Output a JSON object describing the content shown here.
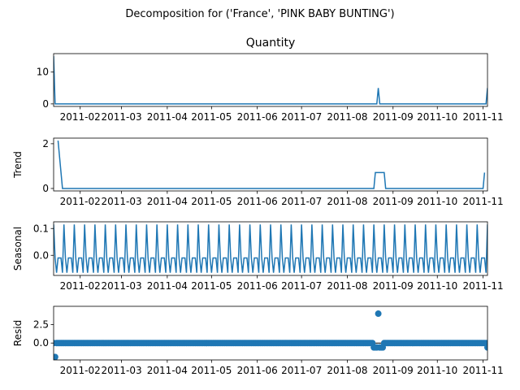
{
  "figure": {
    "suptitle": "Decomposition for ('France', 'PINK BABY BUNTING')"
  },
  "chart_data": [
    {
      "type": "line",
      "panel": "observed",
      "title": "Quantity",
      "ylabel": "",
      "line_color": "#1f77b4",
      "xlim": [
        "2011-01-14",
        "2011-11-04"
      ],
      "ylim": [
        -0.8,
        15.8
      ],
      "yticks": [
        {
          "v": 0,
          "label": "0"
        },
        {
          "v": 10,
          "label": "10"
        }
      ],
      "xticks": [
        {
          "v": "2011-02-01",
          "label": "2011-02"
        },
        {
          "v": "2011-03-01",
          "label": "2011-03"
        },
        {
          "v": "2011-04-01",
          "label": "2011-04"
        },
        {
          "v": "2011-05-01",
          "label": "2011-05"
        },
        {
          "v": "2011-06-01",
          "label": "2011-06"
        },
        {
          "v": "2011-07-01",
          "label": "2011-07"
        },
        {
          "v": "2011-08-01",
          "label": "2011-08"
        },
        {
          "v": "2011-09-01",
          "label": "2011-09"
        },
        {
          "v": "2011-10-01",
          "label": "2011-10"
        },
        {
          "v": "2011-11-01",
          "label": "2011-11"
        }
      ],
      "series": [
        {
          "points": [
            [
              "2011-01-14",
              15
            ],
            [
              "2011-01-15",
              0
            ],
            [
              "2011-08-21",
              0
            ],
            [
              "2011-08-22",
              5
            ],
            [
              "2011-08-23",
              0
            ],
            [
              "2011-11-03",
              0
            ],
            [
              "2011-11-04",
              5
            ]
          ]
        }
      ]
    },
    {
      "type": "line",
      "panel": "trend",
      "ylabel": "Trend",
      "line_color": "#1f77b4",
      "xlim": [
        "2011-01-14",
        "2011-11-04"
      ],
      "ylim": [
        -0.11,
        2.25
      ],
      "yticks": [
        {
          "v": 0,
          "label": "0"
        },
        {
          "v": 2,
          "label": "2"
        }
      ],
      "xticks": [
        {
          "v": "2011-02-01",
          "label": "2011-02"
        },
        {
          "v": "2011-03-01",
          "label": "2011-03"
        },
        {
          "v": "2011-04-01",
          "label": "2011-04"
        },
        {
          "v": "2011-05-01",
          "label": "2011-05"
        },
        {
          "v": "2011-06-01",
          "label": "2011-06"
        },
        {
          "v": "2011-07-01",
          "label": "2011-07"
        },
        {
          "v": "2011-08-01",
          "label": "2011-08"
        },
        {
          "v": "2011-09-01",
          "label": "2011-09"
        },
        {
          "v": "2011-10-01",
          "label": "2011-10"
        },
        {
          "v": "2011-11-01",
          "label": "2011-11"
        }
      ],
      "series": [
        {
          "points": [
            [
              "2011-01-17",
              2.14
            ],
            [
              "2011-01-20",
              0
            ],
            [
              "2011-08-19",
              0
            ],
            [
              "2011-08-20",
              0.71
            ],
            [
              "2011-08-26",
              0.71
            ],
            [
              "2011-08-27",
              0
            ],
            [
              "2011-11-01",
              0
            ],
            [
              "2011-11-02",
              0.71
            ]
          ]
        }
      ]
    },
    {
      "type": "line",
      "panel": "seasonal",
      "ylabel": "Seasonal",
      "line_color": "#1f77b4",
      "xlim": [
        "2011-01-14",
        "2011-11-04"
      ],
      "ylim": [
        -0.075,
        0.125
      ],
      "yticks": [
        {
          "v": 0,
          "label": "0.0"
        },
        {
          "v": 0.1,
          "label": "0.1"
        }
      ],
      "xticks": [
        {
          "v": "2011-02-01",
          "label": "2011-02"
        },
        {
          "v": "2011-03-01",
          "label": "2011-03"
        },
        {
          "v": "2011-04-01",
          "label": "2011-04"
        },
        {
          "v": "2011-05-01",
          "label": "2011-05"
        },
        {
          "v": "2011-06-01",
          "label": "2011-06"
        },
        {
          "v": "2011-07-01",
          "label": "2011-07"
        },
        {
          "v": "2011-08-01",
          "label": "2011-08"
        },
        {
          "v": "2011-09-01",
          "label": "2011-09"
        },
        {
          "v": "2011-10-01",
          "label": "2011-10"
        },
        {
          "v": "2011-11-01",
          "label": "2011-11"
        }
      ],
      "series": [
        {
          "period_days": 7,
          "start": "2011-01-14",
          "end": "2011-11-04",
          "weekly_pattern": [
            0.115,
            -0.01,
            -0.065,
            -0.01,
            -0.01,
            -0.01,
            -0.065
          ]
        }
      ]
    },
    {
      "type": "scatter",
      "panel": "resid",
      "ylabel": "Resid",
      "marker_color": "#1f77b4",
      "baseline": 0,
      "xlim": [
        "2011-01-14",
        "2011-11-04"
      ],
      "ylim": [
        -2.3,
        5.0
      ],
      "yticks": [
        {
          "v": 0,
          "label": "0.0"
        },
        {
          "v": 2.5,
          "label": "2.5"
        }
      ],
      "xticks": [
        {
          "v": "2011-02-01",
          "label": "2011-02"
        },
        {
          "v": "2011-03-01",
          "label": "2011-03"
        },
        {
          "v": "2011-04-01",
          "label": "2011-04"
        },
        {
          "v": "2011-05-01",
          "label": "2011-05"
        },
        {
          "v": "2011-06-01",
          "label": "2011-06"
        },
        {
          "v": "2011-07-01",
          "label": "2011-07"
        },
        {
          "v": "2011-08-01",
          "label": "2011-08"
        },
        {
          "v": "2011-09-01",
          "label": "2011-09"
        },
        {
          "v": "2011-10-01",
          "label": "2011-10"
        },
        {
          "v": "2011-11-01",
          "label": "2011-11"
        }
      ],
      "series": [
        {
          "start": "2011-01-14",
          "end": "2011-11-04",
          "typical_value": 0,
          "points": [
            [
              "2011-01-15",
              -1.9
            ],
            [
              "2011-08-19",
              -0.6
            ],
            [
              "2011-08-20",
              -0.6
            ],
            [
              "2011-08-21",
              -0.6
            ],
            [
              "2011-08-22",
              4.0
            ],
            [
              "2011-08-23",
              -0.6
            ],
            [
              "2011-08-24",
              -0.6
            ],
            [
              "2011-08-25",
              -0.6
            ],
            [
              "2011-11-04",
              -0.6
            ]
          ]
        }
      ]
    }
  ]
}
